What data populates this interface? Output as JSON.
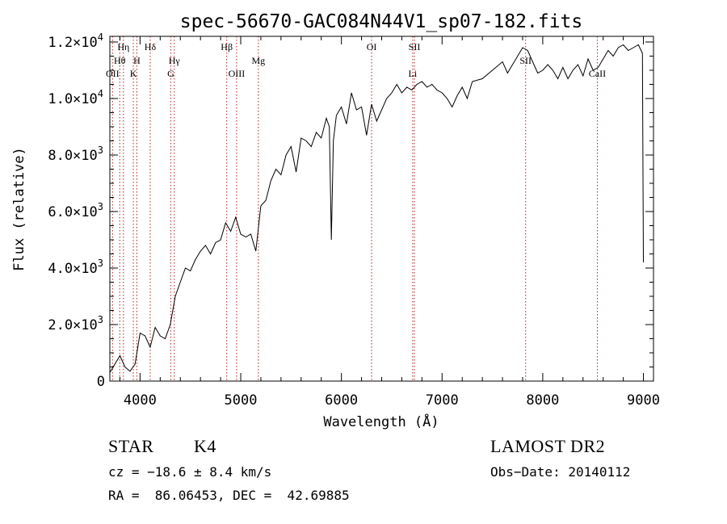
{
  "chart_data": {
    "type": "line",
    "title": "spec-56670-GAC084N44V1_sp07-182.fits",
    "xlabel": "Wavelength (Å)",
    "ylabel": "Flux (relative)",
    "xlim": [
      3700,
      9100
    ],
    "ylim": [
      0,
      12200
    ],
    "x_ticks": [
      4000,
      5000,
      6000,
      7000,
      8000,
      9000
    ],
    "y_ticks": [
      {
        "value": 0,
        "label": "0",
        "exp": ""
      },
      {
        "value": 2000,
        "label": "2.0×10",
        "exp": "3"
      },
      {
        "value": 4000,
        "label": "4.0×10",
        "exp": "3"
      },
      {
        "value": 6000,
        "label": "6.0×10",
        "exp": "3"
      },
      {
        "value": 8000,
        "label": "8.0×10",
        "exp": "3"
      },
      {
        "value": 10000,
        "label": "1.0×10",
        "exp": "4"
      },
      {
        "value": 12000,
        "label": "1.2×10",
        "exp": "4"
      }
    ],
    "series": [
      {
        "x": [
          3700,
          3750,
          3800,
          3850,
          3900,
          3950,
          4000,
          4050,
          4100,
          4150,
          4200,
          4250,
          4300,
          4350,
          4400,
          4450,
          4500,
          4550,
          4600,
          4650,
          4700,
          4750,
          4800,
          4850,
          4900,
          4950,
          5000,
          5050,
          5100,
          5150,
          5200,
          5250,
          5300,
          5350,
          5400,
          5450,
          5500,
          5550,
          5600,
          5650,
          5700,
          5750,
          5800,
          5850,
          5880,
          5900,
          5920,
          5950,
          6000,
          6050,
          6100,
          6150,
          6200,
          6250,
          6300,
          6350,
          6400,
          6450,
          6500,
          6550,
          6600,
          6650,
          6700,
          6750,
          6800,
          6850,
          6900,
          6950,
          7000,
          7050,
          7100,
          7150,
          7200,
          7250,
          7300,
          7400,
          7500,
          7600,
          7650,
          7700,
          7750,
          7800,
          7850,
          7900,
          7950,
          8000,
          8050,
          8100,
          8150,
          8200,
          8250,
          8300,
          8350,
          8400,
          8450,
          8500,
          8550,
          8600,
          8650,
          8700,
          8750,
          8800,
          8850,
          8900,
          8950,
          8990,
          9000
        ],
        "y": [
          300,
          600,
          900,
          500,
          350,
          600,
          1700,
          1600,
          1200,
          1900,
          1600,
          1500,
          2000,
          3000,
          3500,
          4000,
          3900,
          4300,
          4600,
          4800,
          4500,
          4900,
          5000,
          5600,
          5300,
          5800,
          5200,
          5100,
          5200,
          4600,
          6200,
          6400,
          7100,
          7500,
          7300,
          8000,
          8300,
          7400,
          8600,
          8500,
          8300,
          8800,
          8600,
          9300,
          9000,
          5000,
          8500,
          9400,
          9700,
          9100,
          10200,
          9600,
          9700,
          8700,
          9800,
          9200,
          9600,
          10000,
          10200,
          10500,
          10200,
          10400,
          10300,
          10500,
          10600,
          10400,
          10500,
          10300,
          10200,
          10000,
          9700,
          10100,
          10400,
          10000,
          10600,
          10700,
          11000,
          11300,
          10900,
          11200,
          11500,
          11800,
          11700,
          11300,
          10900,
          11000,
          11200,
          11000,
          10700,
          11100,
          10700,
          11000,
          11200,
          10800,
          11400,
          11000,
          11100,
          11400,
          11700,
          11500,
          11800,
          11900,
          11700,
          11800,
          11900,
          11600,
          4200
        ]
      }
    ],
    "lines": [
      {
        "x": 3727,
        "label": "OII",
        "row": 3
      },
      {
        "x": 3798,
        "label": "Hθ",
        "row": 2
      },
      {
        "x": 3835,
        "label": "Hη",
        "row": 1
      },
      {
        "x": 3933,
        "label": "K",
        "row": 3
      },
      {
        "x": 3968,
        "label": "H",
        "row": 2
      },
      {
        "x": 4101,
        "label": "Hδ",
        "row": 1
      },
      {
        "x": 4305,
        "label": "G",
        "row": 3
      },
      {
        "x": 4340,
        "label": "Hγ",
        "row": 2
      },
      {
        "x": 4861,
        "label": "Hβ",
        "row": 1
      },
      {
        "x": 4959,
        "label": "OIII",
        "row": 3
      },
      {
        "x": 5175,
        "label": "Mg",
        "row": 2
      },
      {
        "x": 6300,
        "label": "OI",
        "row": 1
      },
      {
        "x": 6708,
        "label": "Li",
        "row": 3
      },
      {
        "x": 6725,
        "label": "SII",
        "row": 1
      },
      {
        "x": 7830,
        "label": "SII",
        "row": 2
      },
      {
        "x": 8542,
        "label": "CaII",
        "row": 3
      }
    ]
  },
  "info": {
    "objtype": "STAR",
    "subclass": "K4",
    "survey": "LAMOST DR2",
    "cz": "cz = −18.6 ± 8.4 km/s",
    "obsdate": "Obs−Date: 20140112",
    "radec": "RA =  86.06453, DEC =  42.69885"
  }
}
